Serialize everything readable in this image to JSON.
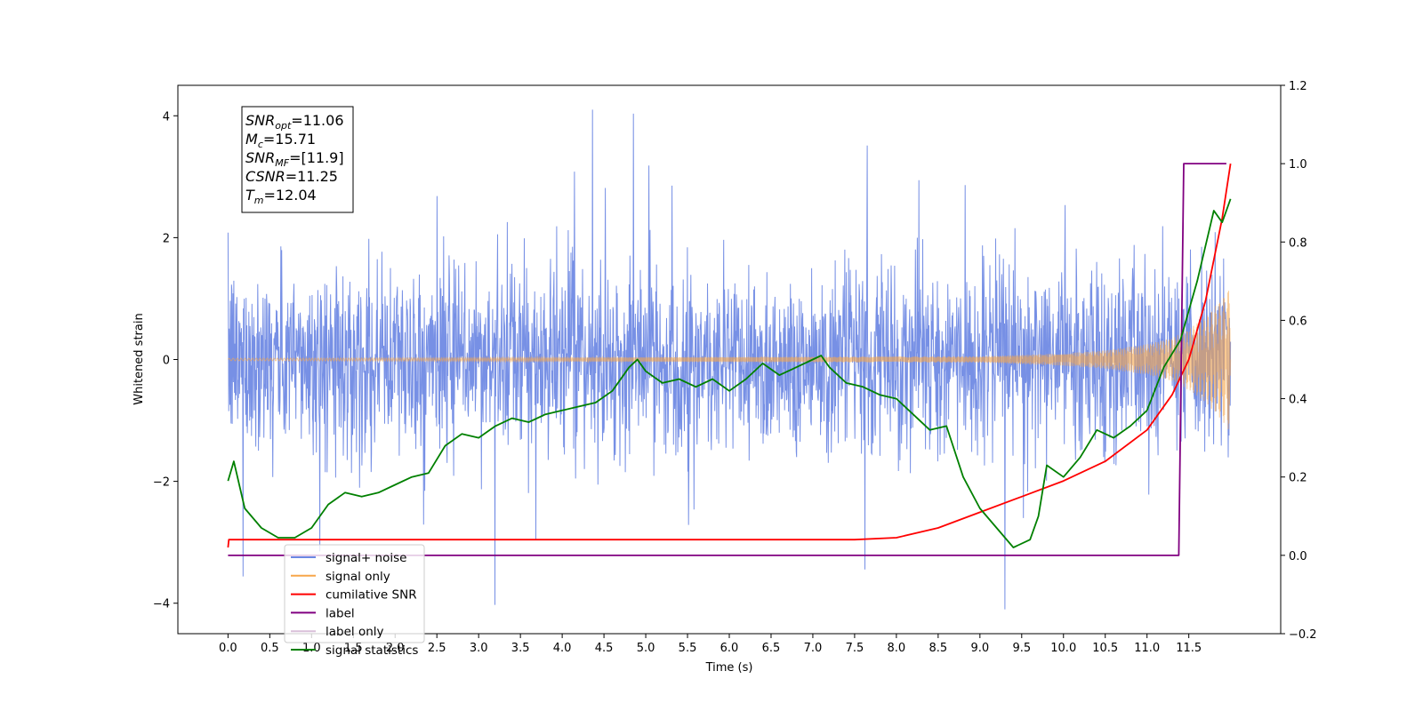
{
  "chart_data": {
    "type": "line",
    "xlabel": "Time (s)",
    "ylabel_left": "Whitened strain",
    "xlim": [
      -0.6,
      12.6
    ],
    "ylim_left": [
      -4.5,
      4.5
    ],
    "ylim_right": [
      -0.2,
      1.2
    ],
    "x_ticks": [
      0.0,
      0.5,
      1.0,
      1.5,
      2.0,
      2.5,
      3.0,
      3.5,
      4.0,
      4.5,
      5.0,
      5.5,
      6.0,
      6.5,
      7.0,
      7.5,
      8.0,
      8.5,
      9.0,
      9.5,
      10.0,
      10.5,
      11.0,
      11.5
    ],
    "x_tick_labels": [
      "0.0",
      "0.5",
      "1.0",
      "1.5",
      "2.0",
      "2.5",
      "3.0",
      "3.5",
      "4.0",
      "4.5",
      "5.0",
      "5.5",
      "6.0",
      "6.5",
      "7.0",
      "7.5",
      "8.0",
      "8.5",
      "9.0",
      "9.5",
      "10.0",
      "10.5",
      "11.0",
      "11.5"
    ],
    "y_left_ticks": [
      -4,
      -2,
      0,
      2,
      4
    ],
    "y_left_tick_labels": [
      "−4",
      "−2",
      "0",
      "2",
      "4"
    ],
    "y_right_ticks": [
      -0.2,
      0.0,
      0.2,
      0.4,
      0.6,
      0.8,
      1.0,
      1.2
    ],
    "y_right_tick_labels": [
      "−0.2",
      "0.0",
      "0.2",
      "0.4",
      "0.6",
      "0.8",
      "1.0",
      "1.2"
    ],
    "grid": false,
    "legend_position": "bottom-left",
    "series": [
      {
        "name": "signal+ noise",
        "axis": "left",
        "color": "#6b87e3",
        "description": "whitened strain noise, roughly within ±2 with spikes up to about ±4",
        "x_range": [
          0.0,
          12.0
        ]
      },
      {
        "name": "signal only",
        "axis": "left",
        "color": "#f7a64a",
        "description": "chirp signal with amplitude growing toward merger",
        "envelope": {
          "x": [
            0.0,
            9.0,
            10.0,
            10.5,
            11.0,
            11.3,
            11.5,
            11.7,
            11.9,
            12.0
          ],
          "amp": [
            0.02,
            0.05,
            0.1,
            0.15,
            0.25,
            0.35,
            0.5,
            0.7,
            1.0,
            1.2
          ]
        }
      },
      {
        "name": "cumilative SNR",
        "axis": "right",
        "color": "#ff0000",
        "x": [
          0.0,
          0.01,
          1.0,
          3.0,
          5.0,
          7.0,
          7.5,
          8.0,
          8.5,
          9.0,
          9.5,
          10.0,
          10.5,
          11.0,
          11.3,
          11.5,
          11.7,
          11.9,
          12.0
        ],
        "values": [
          0.02,
          0.04,
          0.04,
          0.04,
          0.04,
          0.04,
          0.04,
          0.045,
          0.07,
          0.11,
          0.15,
          0.19,
          0.24,
          0.32,
          0.41,
          0.5,
          0.65,
          0.86,
          1.0
        ]
      },
      {
        "name": "label",
        "axis": "right",
        "color": "#800080",
        "x": [
          0.0,
          11.38,
          11.44,
          11.95
        ],
        "values": [
          0.0,
          0.0,
          1.0,
          1.0
        ]
      },
      {
        "name": "label only",
        "axis": "right",
        "color": "#d8bfd8",
        "x": [],
        "values": []
      },
      {
        "name": "signal statistics",
        "axis": "right",
        "color": "#008000",
        "x": [
          0.0,
          0.07,
          0.2,
          0.4,
          0.6,
          0.8,
          1.0,
          1.2,
          1.4,
          1.6,
          1.8,
          2.0,
          2.2,
          2.4,
          2.6,
          2.8,
          3.0,
          3.2,
          3.4,
          3.6,
          3.8,
          4.0,
          4.2,
          4.4,
          4.6,
          4.8,
          4.9,
          5.0,
          5.2,
          5.4,
          5.6,
          5.8,
          6.0,
          6.2,
          6.4,
          6.6,
          6.8,
          7.0,
          7.1,
          7.2,
          7.4,
          7.6,
          7.8,
          8.0,
          8.2,
          8.4,
          8.6,
          8.8,
          9.0,
          9.2,
          9.4,
          9.6,
          9.7,
          9.8,
          10.0,
          10.2,
          10.4,
          10.6,
          10.8,
          11.0,
          11.2,
          11.4,
          11.6,
          11.8,
          11.9,
          12.0
        ],
        "values": [
          0.19,
          0.24,
          0.12,
          0.07,
          0.045,
          0.045,
          0.07,
          0.13,
          0.16,
          0.15,
          0.16,
          0.18,
          0.2,
          0.21,
          0.28,
          0.31,
          0.3,
          0.33,
          0.35,
          0.34,
          0.36,
          0.37,
          0.38,
          0.39,
          0.42,
          0.48,
          0.5,
          0.47,
          0.44,
          0.45,
          0.43,
          0.45,
          0.42,
          0.45,
          0.49,
          0.46,
          0.48,
          0.5,
          0.51,
          0.48,
          0.44,
          0.43,
          0.41,
          0.4,
          0.36,
          0.32,
          0.33,
          0.2,
          0.12,
          0.07,
          0.02,
          0.04,
          0.1,
          0.23,
          0.2,
          0.25,
          0.32,
          0.3,
          0.33,
          0.37,
          0.48,
          0.55,
          0.7,
          0.88,
          0.85,
          0.91
        ]
      }
    ],
    "annotation": {
      "lines": [
        {
          "sym": "SNR",
          "sub": "opt",
          "value": "=11.06"
        },
        {
          "sym": "M",
          "sub": "c",
          "value": "=15.71"
        },
        {
          "sym": "SNR",
          "sub": "MF",
          "value": "=[11.9]"
        },
        {
          "sym": "CSNR",
          "sub": "",
          "value": "=11.25"
        },
        {
          "sym": "T",
          "sub": "m",
          "value": "=12.04"
        }
      ]
    }
  }
}
